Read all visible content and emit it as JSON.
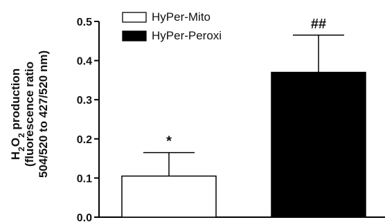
{
  "chart_data": {
    "type": "bar",
    "series": [
      {
        "name": "HyPer-Mito",
        "value": 0.105,
        "error": 0.06,
        "annotation": "*",
        "color": "#ffffff"
      },
      {
        "name": "HyPer-Peroxi",
        "value": 0.37,
        "error": 0.095,
        "annotation": "##",
        "color": "#000000"
      }
    ],
    "ylabel_lines": [
      "H2O2 production",
      "(fluorescence ratio",
      "504/520 to 427/520 nm)"
    ],
    "ylim": [
      0,
      0.5
    ],
    "yticks": [
      "0.0",
      "0.1",
      "0.2",
      "0.3",
      "0.4",
      "0.5"
    ],
    "legend_position": "top-left",
    "grid": false
  }
}
